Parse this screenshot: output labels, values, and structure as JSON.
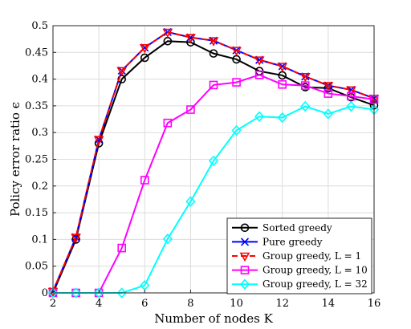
{
  "chart_data": {
    "type": "line",
    "xlabel": "Number of nodes K",
    "ylabel": "Policy error ratio ϵ",
    "xlim": [
      2,
      16
    ],
    "ylim": [
      0,
      0.5
    ],
    "xticks": [
      2,
      4,
      6,
      8,
      10,
      12,
      14,
      16
    ],
    "yticks": [
      0,
      0.05,
      0.1,
      0.15,
      0.2,
      0.25,
      0.3,
      0.35,
      0.4,
      0.45,
      0.5
    ],
    "grid": true,
    "legend_position": "bottom-right",
    "x": [
      2,
      3,
      4,
      5,
      6,
      7,
      8,
      9,
      10,
      11,
      12,
      13,
      14,
      15,
      16
    ],
    "series": [
      {
        "name": "Sorted greedy",
        "color": "#000000",
        "marker": "circle",
        "dash": "solid",
        "values": [
          0.0,
          0.1,
          0.28,
          0.4,
          0.44,
          0.471,
          0.469,
          0.448,
          0.437,
          0.415,
          0.407,
          0.385,
          0.383,
          0.366,
          0.351
        ]
      },
      {
        "name": "Pure greedy",
        "color": "#0000ff",
        "marker": "x",
        "dash": "solid",
        "values": [
          0.003,
          0.104,
          0.287,
          0.416,
          0.459,
          0.488,
          0.478,
          0.472,
          0.454,
          0.436,
          0.424,
          0.405,
          0.388,
          0.38,
          0.364
        ]
      },
      {
        "name": "Group greedy, L = 1",
        "color": "#ff0000",
        "marker": "triangle-down",
        "dash": "dashed",
        "values": [
          0.003,
          0.104,
          0.287,
          0.416,
          0.459,
          0.488,
          0.478,
          0.472,
          0.454,
          0.436,
          0.424,
          0.405,
          0.388,
          0.38,
          0.364
        ]
      },
      {
        "name": "Group greedy, L = 10",
        "color": "#ff00ff",
        "marker": "square",
        "dash": "solid",
        "values": [
          0.0,
          0.0,
          0.0,
          0.084,
          0.211,
          0.318,
          0.343,
          0.389,
          0.394,
          0.408,
          0.39,
          0.388,
          0.373,
          0.368,
          0.362
        ]
      },
      {
        "name": "Group greedy, L = 32",
        "color": "#00ffff",
        "marker": "diamond",
        "dash": "solid",
        "values": [
          0.0,
          0.0,
          0.0,
          0.0,
          0.014,
          0.101,
          0.171,
          0.247,
          0.304,
          0.33,
          0.328,
          0.349,
          0.335,
          0.349,
          0.343
        ]
      }
    ]
  }
}
